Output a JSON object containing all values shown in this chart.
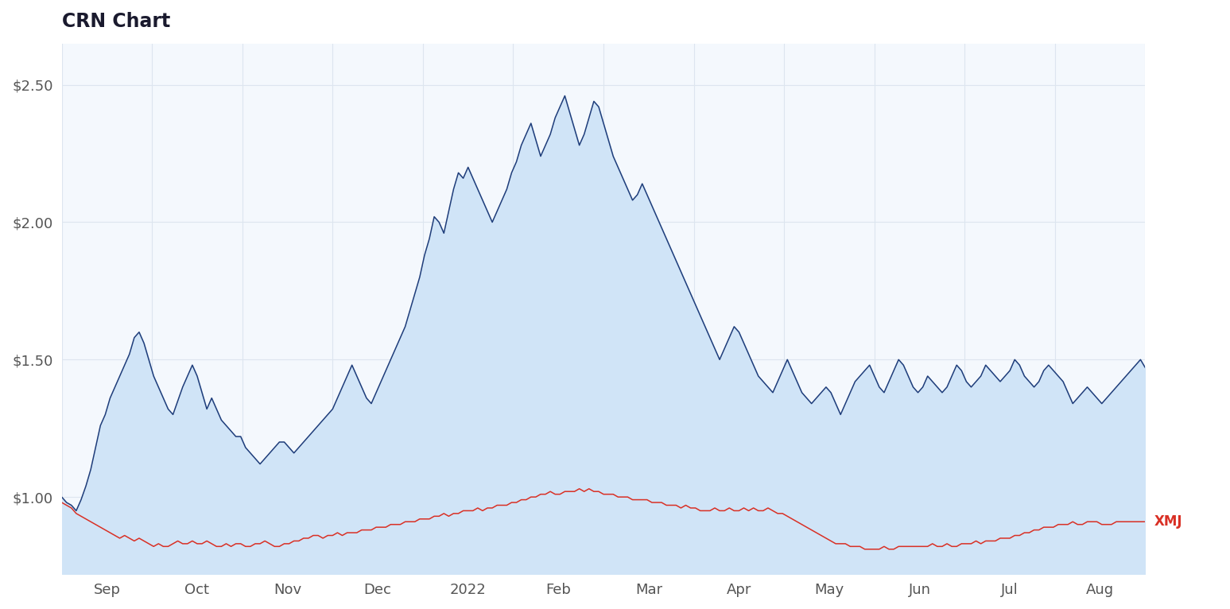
{
  "title": "CRN Chart",
  "title_fontsize": 17,
  "title_fontweight": "bold",
  "title_color": "#1a1a2e",
  "background_color": "#ffffff",
  "plot_bg_color": "#f4f8fd",
  "grid_color": "#dde5ef",
  "ylim": [
    0.72,
    2.65
  ],
  "yticks": [
    1.0,
    1.5,
    2.0,
    2.5
  ],
  "ytick_labels": [
    "$1.00",
    "$1.50",
    "$2.00",
    "$2.50"
  ],
  "xmj_label": "XMJ",
  "xmj_label_color": "#d93025",
  "crn_line_color": "#1f3d7a",
  "crn_fill_color": "#d0e4f7",
  "xmj_line_color": "#d93025",
  "months": [
    "Sep",
    "Oct",
    "Nov",
    "Dec",
    "2022",
    "Feb",
    "Mar",
    "Apr",
    "May",
    "Jun",
    "Jul",
    "Aug"
  ],
  "crn_data": [
    1.0,
    0.98,
    0.97,
    0.95,
    0.99,
    1.04,
    1.1,
    1.18,
    1.26,
    1.3,
    1.36,
    1.4,
    1.44,
    1.48,
    1.52,
    1.58,
    1.6,
    1.56,
    1.5,
    1.44,
    1.4,
    1.36,
    1.32,
    1.3,
    1.35,
    1.4,
    1.44,
    1.48,
    1.44,
    1.38,
    1.32,
    1.36,
    1.32,
    1.28,
    1.26,
    1.24,
    1.22,
    1.22,
    1.18,
    1.16,
    1.14,
    1.12,
    1.14,
    1.16,
    1.18,
    1.2,
    1.2,
    1.18,
    1.16,
    1.18,
    1.2,
    1.22,
    1.24,
    1.26,
    1.28,
    1.3,
    1.32,
    1.36,
    1.4,
    1.44,
    1.48,
    1.44,
    1.4,
    1.36,
    1.34,
    1.38,
    1.42,
    1.46,
    1.5,
    1.54,
    1.58,
    1.62,
    1.68,
    1.74,
    1.8,
    1.88,
    1.94,
    2.02,
    2.0,
    1.96,
    2.04,
    2.12,
    2.18,
    2.16,
    2.2,
    2.16,
    2.12,
    2.08,
    2.04,
    2.0,
    2.04,
    2.08,
    2.12,
    2.18,
    2.22,
    2.28,
    2.32,
    2.36,
    2.3,
    2.24,
    2.28,
    2.32,
    2.38,
    2.42,
    2.46,
    2.4,
    2.34,
    2.28,
    2.32,
    2.38,
    2.44,
    2.42,
    2.36,
    2.3,
    2.24,
    2.2,
    2.16,
    2.12,
    2.08,
    2.1,
    2.14,
    2.1,
    2.06,
    2.02,
    1.98,
    1.94,
    1.9,
    1.86,
    1.82,
    1.78,
    1.74,
    1.7,
    1.66,
    1.62,
    1.58,
    1.54,
    1.5,
    1.54,
    1.58,
    1.62,
    1.6,
    1.56,
    1.52,
    1.48,
    1.44,
    1.42,
    1.4,
    1.38,
    1.42,
    1.46,
    1.5,
    1.46,
    1.42,
    1.38,
    1.36,
    1.34,
    1.36,
    1.38,
    1.4,
    1.38,
    1.34,
    1.3,
    1.34,
    1.38,
    1.42,
    1.44,
    1.46,
    1.48,
    1.44,
    1.4,
    1.38,
    1.42,
    1.46,
    1.5,
    1.48,
    1.44,
    1.4,
    1.38,
    1.4,
    1.44,
    1.42,
    1.4,
    1.38,
    1.4,
    1.44,
    1.48,
    1.46,
    1.42,
    1.4,
    1.42,
    1.44,
    1.48,
    1.46,
    1.44,
    1.42,
    1.44,
    1.46,
    1.5,
    1.48,
    1.44,
    1.42,
    1.4,
    1.42,
    1.46,
    1.48,
    1.46,
    1.44,
    1.42,
    1.38,
    1.34,
    1.36,
    1.38,
    1.4,
    1.38,
    1.36,
    1.34,
    1.36,
    1.38,
    1.4,
    1.42,
    1.44,
    1.46,
    1.48,
    1.5,
    1.47
  ],
  "xmj_data": [
    0.98,
    0.97,
    0.96,
    0.94,
    0.93,
    0.92,
    0.91,
    0.9,
    0.89,
    0.88,
    0.87,
    0.86,
    0.85,
    0.86,
    0.85,
    0.84,
    0.85,
    0.84,
    0.83,
    0.82,
    0.83,
    0.82,
    0.82,
    0.83,
    0.84,
    0.83,
    0.83,
    0.84,
    0.83,
    0.83,
    0.84,
    0.83,
    0.82,
    0.82,
    0.83,
    0.82,
    0.83,
    0.83,
    0.82,
    0.82,
    0.83,
    0.83,
    0.84,
    0.83,
    0.82,
    0.82,
    0.83,
    0.83,
    0.84,
    0.84,
    0.85,
    0.85,
    0.86,
    0.86,
    0.85,
    0.86,
    0.86,
    0.87,
    0.86,
    0.87,
    0.87,
    0.87,
    0.88,
    0.88,
    0.88,
    0.89,
    0.89,
    0.89,
    0.9,
    0.9,
    0.9,
    0.91,
    0.91,
    0.91,
    0.92,
    0.92,
    0.92,
    0.93,
    0.93,
    0.94,
    0.93,
    0.94,
    0.94,
    0.95,
    0.95,
    0.95,
    0.96,
    0.95,
    0.96,
    0.96,
    0.97,
    0.97,
    0.97,
    0.98,
    0.98,
    0.99,
    0.99,
    1.0,
    1.0,
    1.01,
    1.01,
    1.02,
    1.01,
    1.01,
    1.02,
    1.02,
    1.02,
    1.03,
    1.02,
    1.03,
    1.02,
    1.02,
    1.01,
    1.01,
    1.01,
    1.0,
    1.0,
    1.0,
    0.99,
    0.99,
    0.99,
    0.99,
    0.98,
    0.98,
    0.98,
    0.97,
    0.97,
    0.97,
    0.96,
    0.97,
    0.96,
    0.96,
    0.95,
    0.95,
    0.95,
    0.96,
    0.95,
    0.95,
    0.96,
    0.95,
    0.95,
    0.96,
    0.95,
    0.96,
    0.95,
    0.95,
    0.96,
    0.95,
    0.94,
    0.94,
    0.93,
    0.92,
    0.91,
    0.9,
    0.89,
    0.88,
    0.87,
    0.86,
    0.85,
    0.84,
    0.83,
    0.83,
    0.83,
    0.82,
    0.82,
    0.82,
    0.81,
    0.81,
    0.81,
    0.81,
    0.82,
    0.81,
    0.81,
    0.82,
    0.82,
    0.82,
    0.82,
    0.82,
    0.82,
    0.82,
    0.83,
    0.82,
    0.82,
    0.83,
    0.82,
    0.82,
    0.83,
    0.83,
    0.83,
    0.84,
    0.83,
    0.84,
    0.84,
    0.84,
    0.85,
    0.85,
    0.85,
    0.86,
    0.86,
    0.87,
    0.87,
    0.88,
    0.88,
    0.89,
    0.89,
    0.89,
    0.9,
    0.9,
    0.9,
    0.91,
    0.9,
    0.9,
    0.91,
    0.91,
    0.91,
    0.9,
    0.9,
    0.9,
    0.91,
    0.91,
    0.91,
    0.91,
    0.91,
    0.91,
    0.91
  ]
}
